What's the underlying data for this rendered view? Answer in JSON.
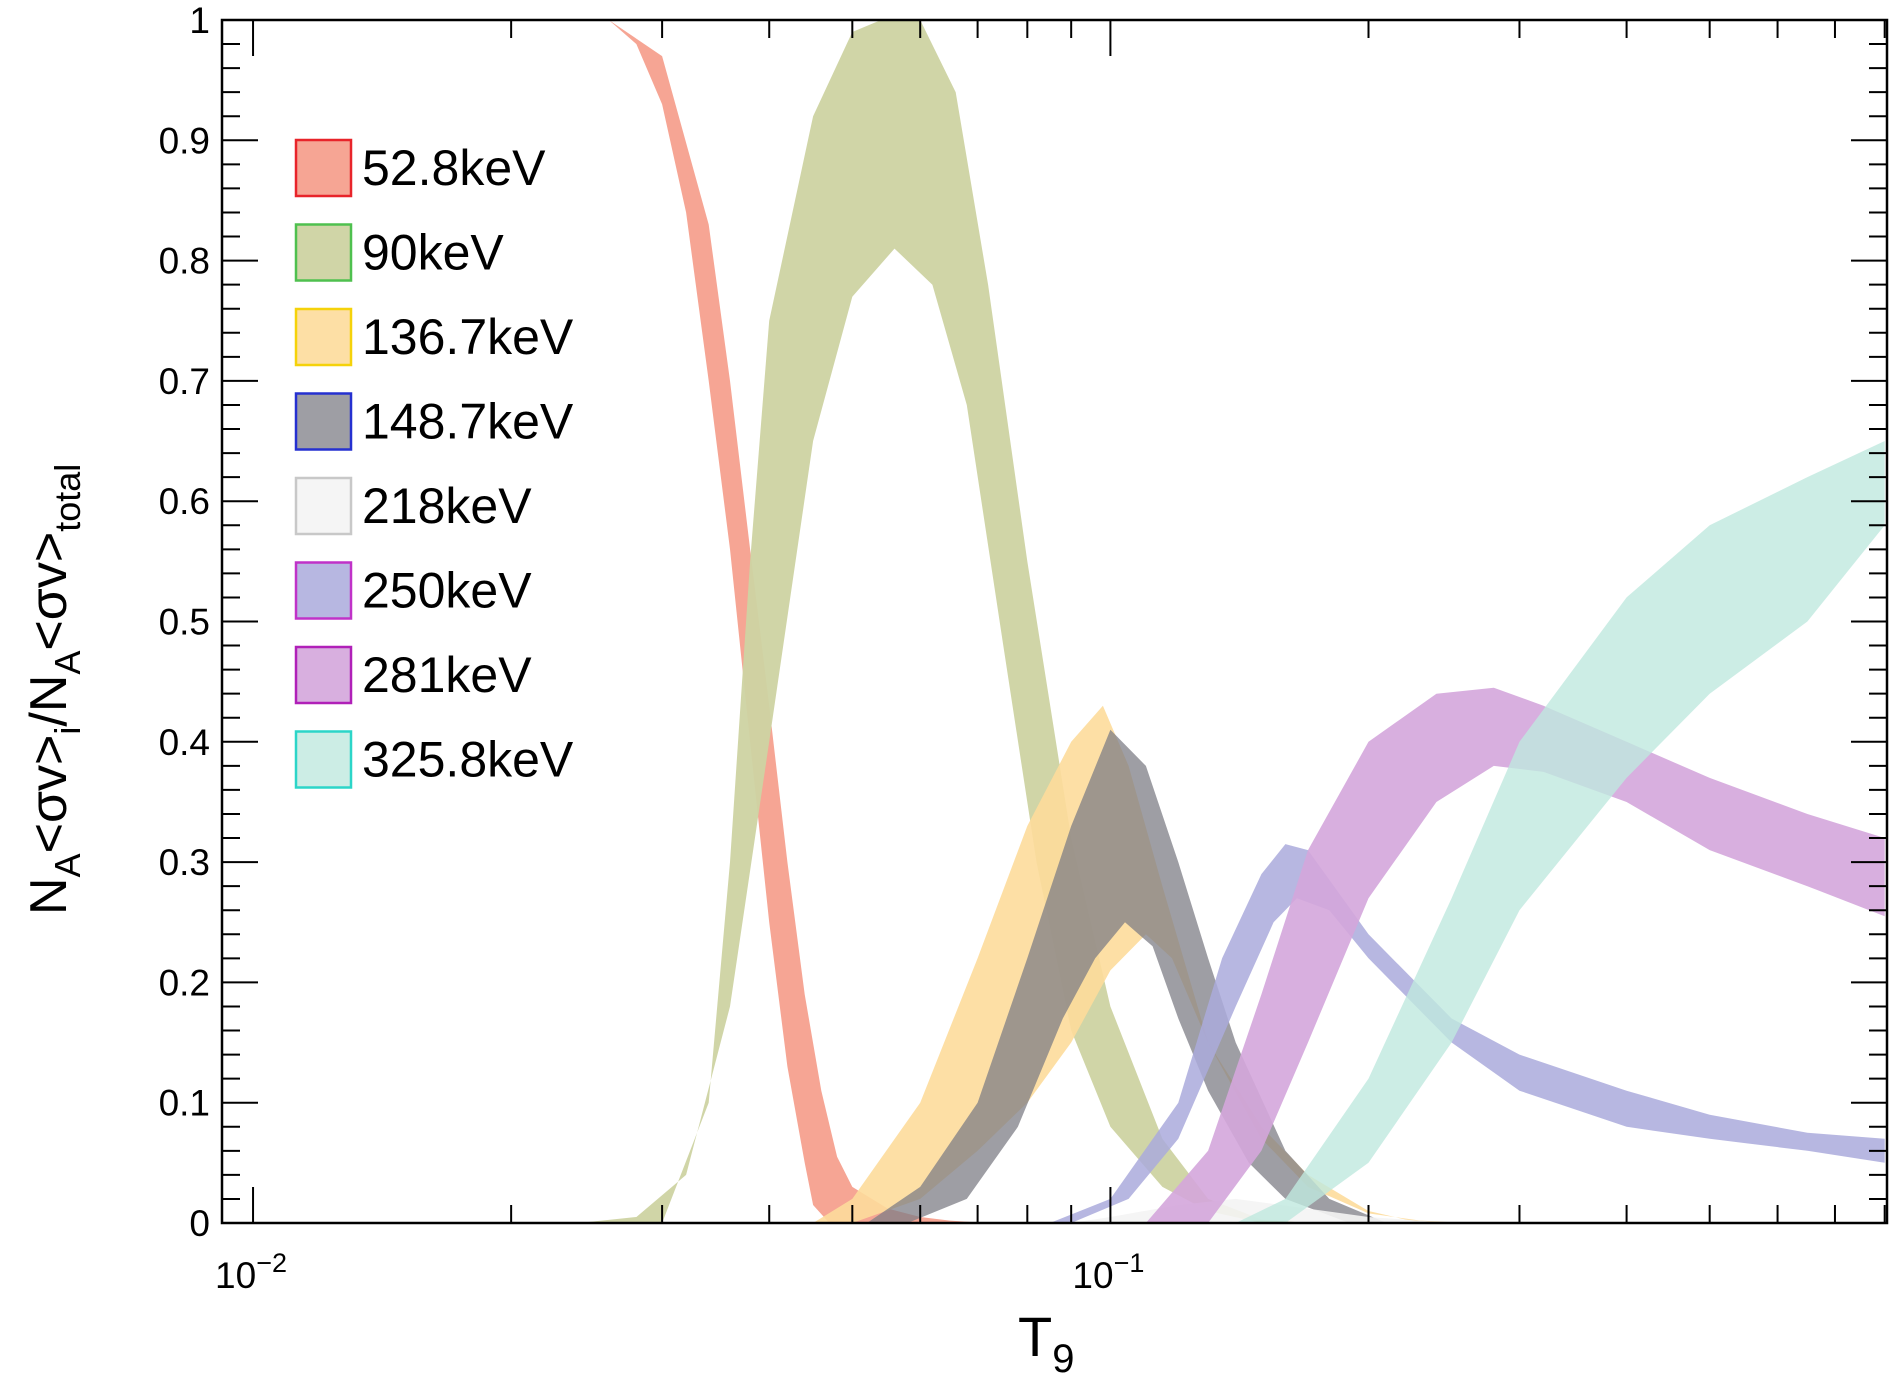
{
  "chart_data": {
    "type": "area",
    "xlabel": {
      "main": "T",
      "sub": "9"
    },
    "ylabel": {
      "p1": "N",
      "s1": "A",
      "p2": "<σv>",
      "s2": "i",
      "p3": "/N",
      "s3": "A",
      "p4": "<σv>",
      "s4": "total"
    },
    "x_scale": "log",
    "xlim": [
      0.0092,
      0.805
    ],
    "ylim": [
      0,
      1
    ],
    "x_ticks": [
      {
        "value": 0.01,
        "base": "10",
        "exp": "−2"
      },
      {
        "value": 0.1,
        "base": "10",
        "exp": "−1"
      }
    ],
    "y_ticks": [
      {
        "value": 0,
        "label": "0"
      },
      {
        "value": 0.1,
        "label": "0.1"
      },
      {
        "value": 0.2,
        "label": "0.2"
      },
      {
        "value": 0.3,
        "label": "0.3"
      },
      {
        "value": 0.4,
        "label": "0.4"
      },
      {
        "value": 0.5,
        "label": "0.5"
      },
      {
        "value": 0.6,
        "label": "0.6"
      },
      {
        "value": 0.7,
        "label": "0.7"
      },
      {
        "value": 0.8,
        "label": "0.8"
      },
      {
        "value": 0.9,
        "label": "0.9"
      },
      {
        "value": 1,
        "label": "1"
      }
    ],
    "legend_position": "top-left",
    "series": [
      {
        "name": "52.8keV",
        "fill": "#f5a08e",
        "stroke": "#e8242a",
        "opacity": 0.95,
        "upper": [
          [
            0.026,
            1.0
          ],
          [
            0.03,
            0.97
          ],
          [
            0.034,
            0.83
          ],
          [
            0.036,
            0.7
          ],
          [
            0.038,
            0.56
          ],
          [
            0.04,
            0.43
          ],
          [
            0.042,
            0.3
          ],
          [
            0.044,
            0.19
          ],
          [
            0.046,
            0.11
          ],
          [
            0.048,
            0.055
          ],
          [
            0.05,
            0.03
          ],
          [
            0.055,
            0.012
          ],
          [
            0.06,
            0.005
          ],
          [
            0.065,
            0.002
          ],
          [
            0.07,
            0.0005
          ]
        ],
        "lower": [
          [
            0.026,
            1.0
          ],
          [
            0.028,
            0.98
          ],
          [
            0.03,
            0.93
          ],
          [
            0.032,
            0.84
          ],
          [
            0.034,
            0.7
          ],
          [
            0.036,
            0.56
          ],
          [
            0.038,
            0.4
          ],
          [
            0.04,
            0.25
          ],
          [
            0.042,
            0.13
          ],
          [
            0.044,
            0.05
          ],
          [
            0.045,
            0.015
          ],
          [
            0.047,
            0.0
          ],
          [
            0.07,
            0.0
          ]
        ]
      },
      {
        "name": "90keV",
        "fill": "#cdd3a2",
        "stroke": "#4fc04f",
        "opacity": 0.95,
        "upper": [
          [
            0.03,
            0.0
          ],
          [
            0.034,
            0.1
          ],
          [
            0.036,
            0.3
          ],
          [
            0.038,
            0.55
          ],
          [
            0.04,
            0.75
          ],
          [
            0.045,
            0.92
          ],
          [
            0.05,
            0.99
          ],
          [
            0.054,
            1.0
          ],
          [
            0.06,
            1.0
          ],
          [
            0.066,
            0.94
          ],
          [
            0.072,
            0.78
          ],
          [
            0.08,
            0.55
          ],
          [
            0.09,
            0.32
          ],
          [
            0.1,
            0.18
          ],
          [
            0.115,
            0.07
          ],
          [
            0.13,
            0.02
          ],
          [
            0.15,
            0.003
          ],
          [
            0.17,
            0.0
          ]
        ],
        "lower": [
          [
            0.024,
            0.0
          ],
          [
            0.028,
            0.005
          ],
          [
            0.032,
            0.04
          ],
          [
            0.036,
            0.18
          ],
          [
            0.04,
            0.4
          ],
          [
            0.045,
            0.65
          ],
          [
            0.05,
            0.77
          ],
          [
            0.056,
            0.81
          ],
          [
            0.062,
            0.78
          ],
          [
            0.068,
            0.68
          ],
          [
            0.075,
            0.48
          ],
          [
            0.082,
            0.3
          ],
          [
            0.09,
            0.16
          ],
          [
            0.1,
            0.08
          ],
          [
            0.115,
            0.03
          ],
          [
            0.13,
            0.01
          ],
          [
            0.15,
            0.0
          ]
        ]
      },
      {
        "name": "136.7keV",
        "fill": "#fddc9b",
        "stroke": "#f5d20a",
        "opacity": 0.9,
        "upper": [
          [
            0.045,
            0.0
          ],
          [
            0.05,
            0.02
          ],
          [
            0.06,
            0.1
          ],
          [
            0.07,
            0.22
          ],
          [
            0.08,
            0.33
          ],
          [
            0.09,
            0.4
          ],
          [
            0.098,
            0.43
          ],
          [
            0.105,
            0.38
          ],
          [
            0.115,
            0.28
          ],
          [
            0.13,
            0.15
          ],
          [
            0.15,
            0.07
          ],
          [
            0.17,
            0.03
          ],
          [
            0.2,
            0.008
          ],
          [
            0.23,
            0.002
          ],
          [
            0.26,
            0.0
          ]
        ],
        "lower": [
          [
            0.05,
            0.0
          ],
          [
            0.06,
            0.02
          ],
          [
            0.07,
            0.06
          ],
          [
            0.08,
            0.1
          ],
          [
            0.09,
            0.15
          ],
          [
            0.1,
            0.21
          ],
          [
            0.11,
            0.24
          ],
          [
            0.118,
            0.22
          ],
          [
            0.13,
            0.15
          ],
          [
            0.15,
            0.08
          ],
          [
            0.17,
            0.04
          ],
          [
            0.2,
            0.01
          ],
          [
            0.23,
            0.0
          ]
        ]
      },
      {
        "name": "148.7keV",
        "fill": "#7d7d86",
        "stroke": "#2530d0",
        "opacity": 0.75,
        "upper": [
          [
            0.052,
            0.0
          ],
          [
            0.06,
            0.03
          ],
          [
            0.07,
            0.1
          ],
          [
            0.08,
            0.22
          ],
          [
            0.09,
            0.33
          ],
          [
            0.1,
            0.41
          ],
          [
            0.11,
            0.38
          ],
          [
            0.12,
            0.3
          ],
          [
            0.13,
            0.22
          ],
          [
            0.14,
            0.15
          ],
          [
            0.16,
            0.06
          ],
          [
            0.18,
            0.02
          ],
          [
            0.21,
            0.0
          ]
        ],
        "lower": [
          [
            0.058,
            0.0
          ],
          [
            0.068,
            0.02
          ],
          [
            0.078,
            0.08
          ],
          [
            0.088,
            0.17
          ],
          [
            0.096,
            0.22
          ],
          [
            0.104,
            0.25
          ],
          [
            0.112,
            0.23
          ],
          [
            0.12,
            0.17
          ],
          [
            0.13,
            0.11
          ],
          [
            0.145,
            0.05
          ],
          [
            0.16,
            0.02
          ],
          [
            0.19,
            0.0
          ]
        ]
      },
      {
        "name": "218keV",
        "fill": "#f4f4f4",
        "stroke": "#c8c8c8",
        "opacity": 0.9,
        "upper": [
          [
            0.09,
            0.0
          ],
          [
            0.1,
            0.005
          ],
          [
            0.12,
            0.015
          ],
          [
            0.14,
            0.02
          ],
          [
            0.17,
            0.012
          ],
          [
            0.2,
            0.005
          ],
          [
            0.25,
            0.0
          ]
        ],
        "lower": [
          [
            0.1,
            0.0
          ],
          [
            0.15,
            0.002
          ],
          [
            0.2,
            0.0
          ]
        ]
      },
      {
        "name": "250keV",
        "fill": "#aaaadc",
        "stroke": "#c032c8",
        "opacity": 0.85,
        "upper": [
          [
            0.085,
            0.0
          ],
          [
            0.1,
            0.02
          ],
          [
            0.12,
            0.1
          ],
          [
            0.135,
            0.22
          ],
          [
            0.15,
            0.29
          ],
          [
            0.16,
            0.315
          ],
          [
            0.17,
            0.31
          ],
          [
            0.2,
            0.24
          ],
          [
            0.25,
            0.17
          ],
          [
            0.3,
            0.14
          ],
          [
            0.4,
            0.11
          ],
          [
            0.5,
            0.09
          ],
          [
            0.65,
            0.075
          ],
          [
            0.8,
            0.07
          ]
        ],
        "lower": [
          [
            0.09,
            0.0
          ],
          [
            0.105,
            0.02
          ],
          [
            0.12,
            0.07
          ],
          [
            0.14,
            0.18
          ],
          [
            0.155,
            0.25
          ],
          [
            0.165,
            0.27
          ],
          [
            0.18,
            0.26
          ],
          [
            0.2,
            0.22
          ],
          [
            0.25,
            0.15
          ],
          [
            0.3,
            0.11
          ],
          [
            0.4,
            0.08
          ],
          [
            0.5,
            0.07
          ],
          [
            0.65,
            0.06
          ],
          [
            0.8,
            0.05
          ]
        ]
      },
      {
        "name": "281keV",
        "fill": "#d4a6dc",
        "stroke": "#b020b8",
        "opacity": 0.9,
        "upper": [
          [
            0.11,
            0.0
          ],
          [
            0.13,
            0.06
          ],
          [
            0.15,
            0.19
          ],
          [
            0.17,
            0.31
          ],
          [
            0.2,
            0.4
          ],
          [
            0.24,
            0.44
          ],
          [
            0.28,
            0.445
          ],
          [
            0.32,
            0.43
          ],
          [
            0.4,
            0.4
          ],
          [
            0.5,
            0.37
          ],
          [
            0.65,
            0.34
          ],
          [
            0.8,
            0.32
          ]
        ],
        "lower": [
          [
            0.13,
            0.0
          ],
          [
            0.15,
            0.06
          ],
          [
            0.17,
            0.15
          ],
          [
            0.2,
            0.27
          ],
          [
            0.24,
            0.35
          ],
          [
            0.28,
            0.38
          ],
          [
            0.32,
            0.375
          ],
          [
            0.4,
            0.35
          ],
          [
            0.5,
            0.31
          ],
          [
            0.65,
            0.28
          ],
          [
            0.8,
            0.255
          ]
        ]
      },
      {
        "name": "325.8keV",
        "fill": "#bfe9df",
        "stroke": "#2cd5c8",
        "opacity": 0.8,
        "upper": [
          [
            0.14,
            0.0
          ],
          [
            0.16,
            0.02
          ],
          [
            0.2,
            0.12
          ],
          [
            0.25,
            0.27
          ],
          [
            0.3,
            0.4
          ],
          [
            0.4,
            0.52
          ],
          [
            0.5,
            0.58
          ],
          [
            0.65,
            0.62
          ],
          [
            0.8,
            0.65
          ]
        ],
        "lower": [
          [
            0.16,
            0.0
          ],
          [
            0.2,
            0.05
          ],
          [
            0.25,
            0.15
          ],
          [
            0.3,
            0.26
          ],
          [
            0.4,
            0.37
          ],
          [
            0.5,
            0.44
          ],
          [
            0.65,
            0.5
          ],
          [
            0.8,
            0.58
          ]
        ]
      }
    ]
  }
}
